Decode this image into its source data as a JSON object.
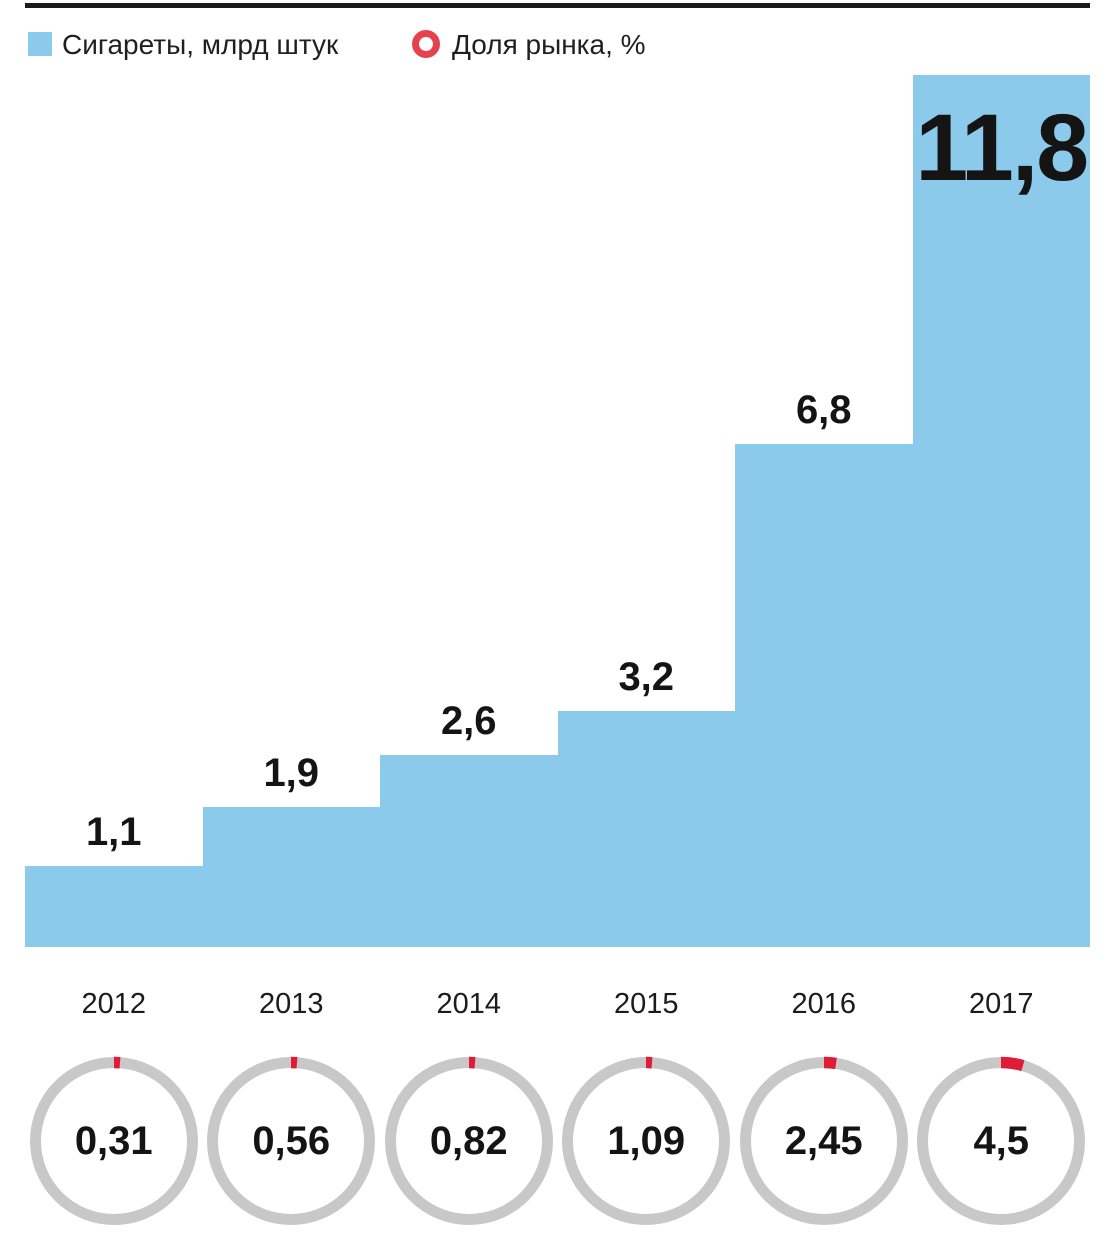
{
  "legend": {
    "bars_label": "Сигареты, млрд штук",
    "share_label": "Доля рынка, %"
  },
  "chart_data": {
    "type": "combo",
    "categories": [
      "2012",
      "2013",
      "2014",
      "2015",
      "2016",
      "2017"
    ],
    "series": [
      {
        "name": "Сигареты, млрд штук",
        "type": "bar",
        "style": "stepped-adjacent-bars",
        "unit": "млрд штук",
        "values": [
          1.1,
          1.9,
          2.6,
          3.2,
          6.8,
          11.8
        ],
        "labels": [
          "1,1",
          "1,9",
          "2,6",
          "3,2",
          "6,8",
          "11,8"
        ]
      },
      {
        "name": "Доля рынка, %",
        "type": "donut",
        "unit": "%",
        "donut_max": 100,
        "values": [
          0.31,
          0.56,
          0.82,
          1.09,
          2.45,
          4.5
        ],
        "labels": [
          "0,31",
          "0,56",
          "0,82",
          "1,09",
          "2,45",
          "4,5"
        ]
      }
    ],
    "ylim": [
      0,
      11.8
    ],
    "grid": false,
    "legend_position": "top"
  },
  "colors": {
    "bar_fill": "#8ccaec",
    "legend_ring_red": "#e5424c",
    "donut_track_gray": "#c8c8c8",
    "donut_arc_red": "#e11b35",
    "text_black": "#141414",
    "rule_black": "#1a1a1a"
  }
}
